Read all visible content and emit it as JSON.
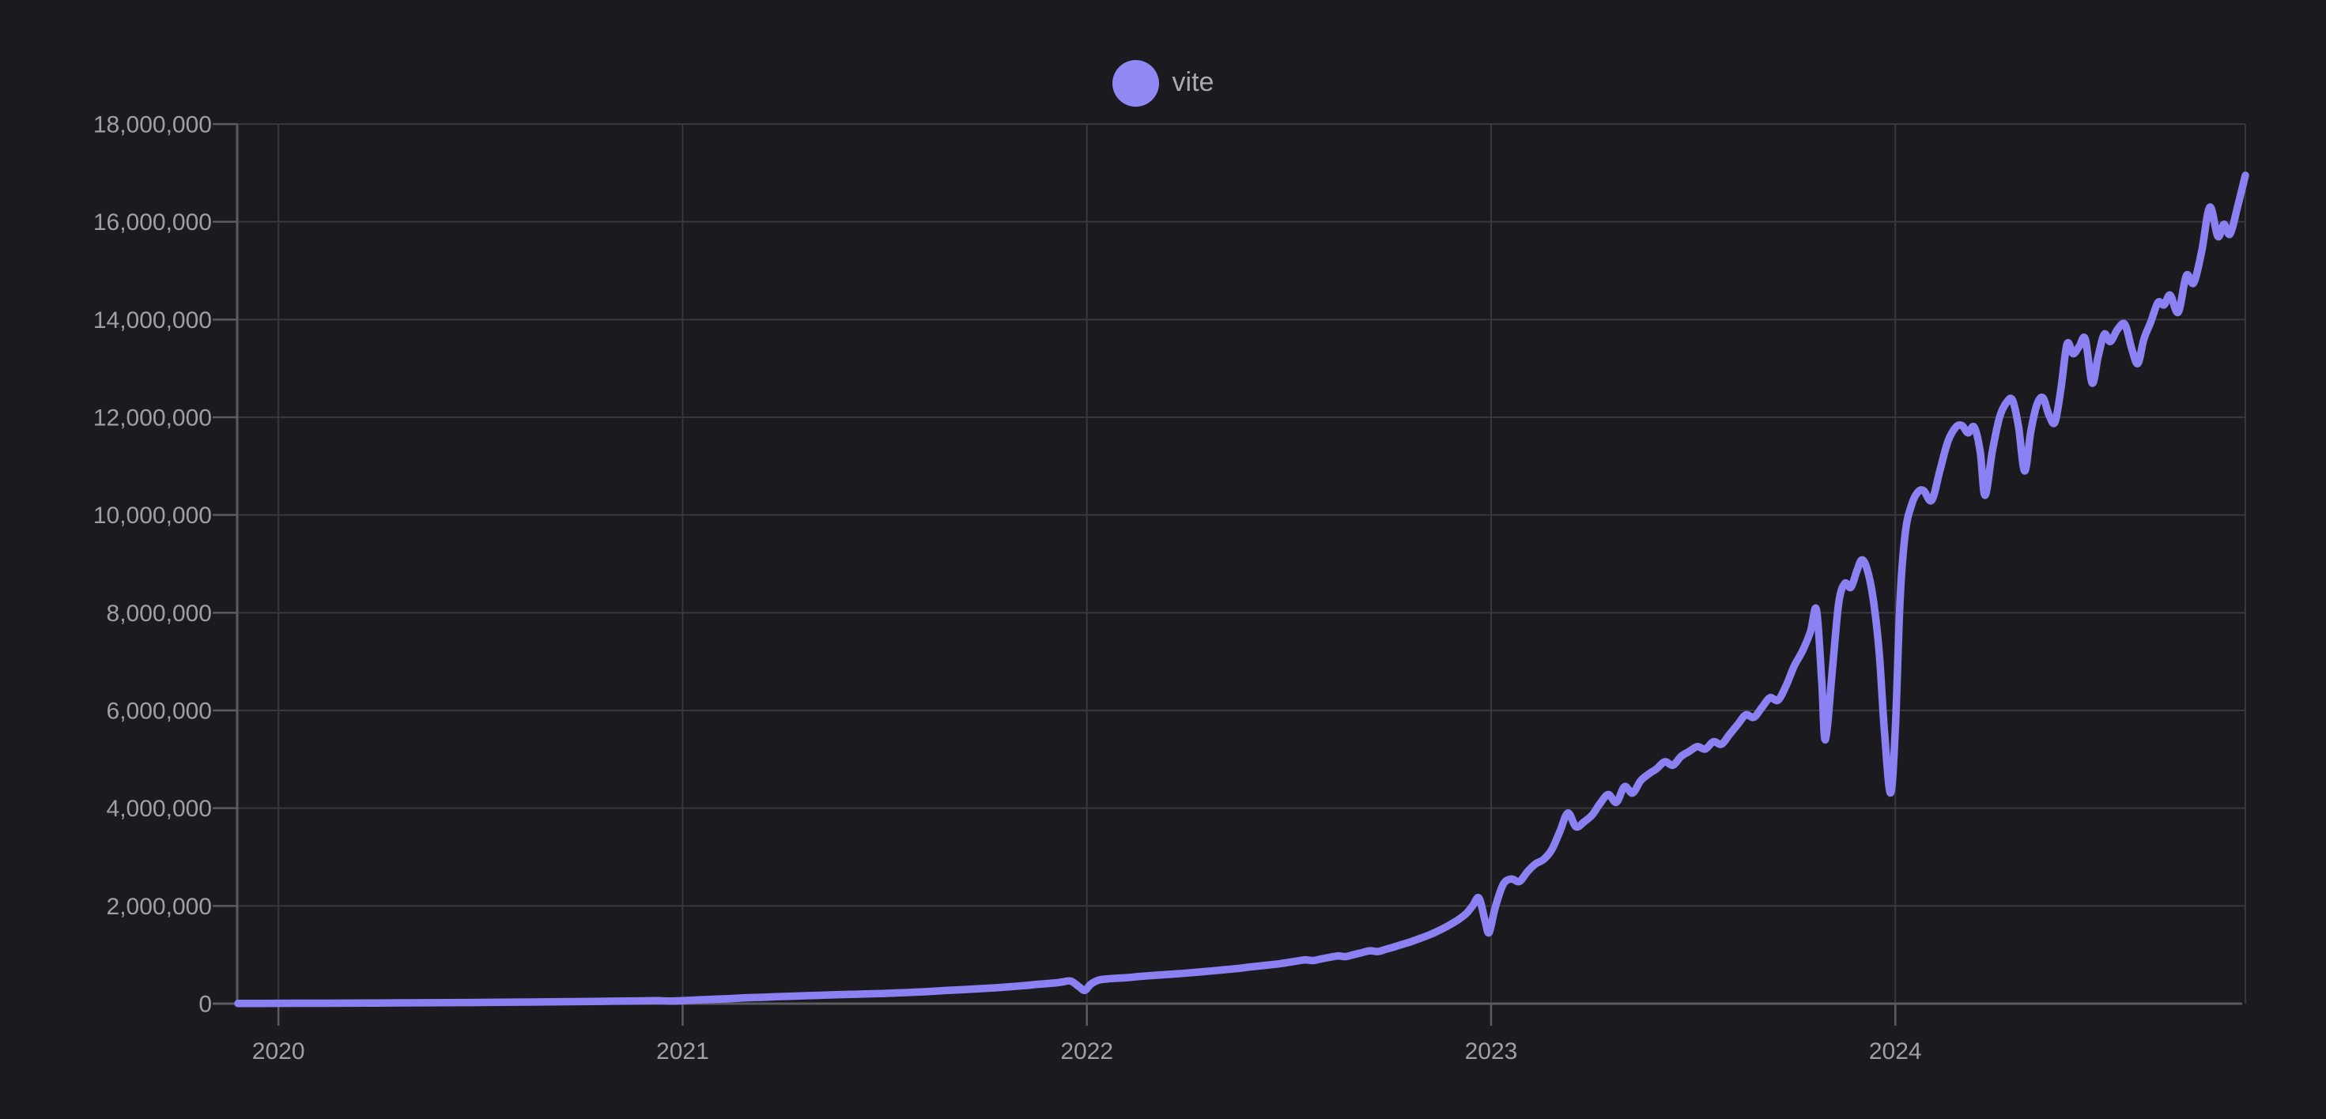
{
  "colors": {
    "background": "#1b1a1f",
    "gridline": "#39383e",
    "axis_line": "#5c5b61",
    "tick_label": "#a0a0a2",
    "legend_label": "#ababad",
    "series_line": "#8c81f2",
    "legend_marker": "#9089f4"
  },
  "legend": {
    "items": [
      {
        "label": "vite",
        "color": "#9089f4"
      }
    ]
  },
  "chart_data": {
    "type": "line",
    "title": "",
    "xlabel": "",
    "ylabel": "",
    "grid": true,
    "legend_position": "top-center",
    "x_axis": {
      "range": [
        2019.898,
        2024.866
      ],
      "ticks": [
        {
          "value": 2020,
          "label": "2020"
        },
        {
          "value": 2021,
          "label": "2021"
        },
        {
          "value": 2022,
          "label": "2022"
        },
        {
          "value": 2023,
          "label": "2023"
        },
        {
          "value": 2024,
          "label": "2024"
        }
      ]
    },
    "y_axis": {
      "range": [
        0,
        18000000
      ],
      "ticks": [
        {
          "value": 0,
          "label": "0"
        },
        {
          "value": 2000000,
          "label": "2,000,000"
        },
        {
          "value": 4000000,
          "label": "4,000,000"
        },
        {
          "value": 6000000,
          "label": "6,000,000"
        },
        {
          "value": 8000000,
          "label": "8,000,000"
        },
        {
          "value": 10000000,
          "label": "10,000,000"
        },
        {
          "value": 12000000,
          "label": "12,000,000"
        },
        {
          "value": 14000000,
          "label": "14,000,000"
        },
        {
          "value": 16000000,
          "label": "16,000,000"
        },
        {
          "value": 18000000,
          "label": "18,000,000"
        }
      ]
    },
    "series": [
      {
        "name": "vite",
        "color": "#8c81f2",
        "points": [
          [
            2019.9,
            4000
          ],
          [
            2019.95,
            5000
          ],
          [
            2020.0,
            6000
          ],
          [
            2020.08,
            8000
          ],
          [
            2020.17,
            10000
          ],
          [
            2020.25,
            13000
          ],
          [
            2020.33,
            16000
          ],
          [
            2020.42,
            20000
          ],
          [
            2020.5,
            25000
          ],
          [
            2020.58,
            30000
          ],
          [
            2020.67,
            36000
          ],
          [
            2020.75,
            42000
          ],
          [
            2020.83,
            50000
          ],
          [
            2020.9,
            57000
          ],
          [
            2020.94,
            60000
          ],
          [
            2020.97,
            52000
          ],
          [
            2021.0,
            62000
          ],
          [
            2021.04,
            76000
          ],
          [
            2021.08,
            90000
          ],
          [
            2021.12,
            103000
          ],
          [
            2021.15,
            116000
          ],
          [
            2021.19,
            128000
          ],
          [
            2021.23,
            140000
          ],
          [
            2021.27,
            152000
          ],
          [
            2021.31,
            163000
          ],
          [
            2021.35,
            173000
          ],
          [
            2021.38,
            182000
          ],
          [
            2021.42,
            191000
          ],
          [
            2021.46,
            200000
          ],
          [
            2021.5,
            209000
          ],
          [
            2021.54,
            221000
          ],
          [
            2021.58,
            236000
          ],
          [
            2021.62,
            253000
          ],
          [
            2021.65,
            268000
          ],
          [
            2021.69,
            285000
          ],
          [
            2021.73,
            302000
          ],
          [
            2021.77,
            322000
          ],
          [
            2021.81,
            346000
          ],
          [
            2021.85,
            372000
          ],
          [
            2021.88,
            396000
          ],
          [
            2021.92,
            422000
          ],
          [
            2021.94,
            445000
          ],
          [
            2021.96,
            462000
          ],
          [
            2021.98,
            350000
          ],
          [
            2021.995,
            272000
          ],
          [
            2022.01,
            400000
          ],
          [
            2022.03,
            482000
          ],
          [
            2022.06,
            512000
          ],
          [
            2022.1,
            532000
          ],
          [
            2022.13,
            556000
          ],
          [
            2022.17,
            581000
          ],
          [
            2022.21,
            603000
          ],
          [
            2022.25,
            627000
          ],
          [
            2022.29,
            655000
          ],
          [
            2022.33,
            686000
          ],
          [
            2022.37,
            716000
          ],
          [
            2022.4,
            747000
          ],
          [
            2022.44,
            782000
          ],
          [
            2022.48,
            820000
          ],
          [
            2022.5,
            846000
          ],
          [
            2022.52,
            872000
          ],
          [
            2022.54,
            896000
          ],
          [
            2022.56,
            882000
          ],
          [
            2022.58,
            916000
          ],
          [
            2022.6,
            946000
          ],
          [
            2022.62,
            976000
          ],
          [
            2022.64,
            962000
          ],
          [
            2022.66,
            1002000
          ],
          [
            2022.68,
            1042000
          ],
          [
            2022.7,
            1082000
          ],
          [
            2022.72,
            1066000
          ],
          [
            2022.74,
            1112000
          ],
          [
            2022.76,
            1160000
          ],
          [
            2022.78,
            1212000
          ],
          [
            2022.8,
            1262000
          ],
          [
            2022.82,
            1322000
          ],
          [
            2022.84,
            1382000
          ],
          [
            2022.86,
            1452000
          ],
          [
            2022.88,
            1532000
          ],
          [
            2022.9,
            1622000
          ],
          [
            2022.92,
            1724000
          ],
          [
            2022.94,
            1856000
          ],
          [
            2022.955,
            2010000
          ],
          [
            2022.97,
            2160000
          ],
          [
            2022.985,
            1700000
          ],
          [
            2022.995,
            1452000
          ],
          [
            2023.01,
            1960000
          ],
          [
            2023.03,
            2440000
          ],
          [
            2023.05,
            2550000
          ],
          [
            2023.07,
            2500000
          ],
          [
            2023.09,
            2700000
          ],
          [
            2023.11,
            2860000
          ],
          [
            2023.13,
            2950000
          ],
          [
            2023.15,
            3150000
          ],
          [
            2023.17,
            3520000
          ],
          [
            2023.19,
            3900000
          ],
          [
            2023.21,
            3620000
          ],
          [
            2023.23,
            3720000
          ],
          [
            2023.25,
            3860000
          ],
          [
            2023.27,
            4100000
          ],
          [
            2023.29,
            4280000
          ],
          [
            2023.31,
            4120000
          ],
          [
            2023.33,
            4440000
          ],
          [
            2023.35,
            4310000
          ],
          [
            2023.37,
            4560000
          ],
          [
            2023.39,
            4700000
          ],
          [
            2023.41,
            4810000
          ],
          [
            2023.43,
            4950000
          ],
          [
            2023.45,
            4880000
          ],
          [
            2023.47,
            5060000
          ],
          [
            2023.49,
            5160000
          ],
          [
            2023.51,
            5260000
          ],
          [
            2023.53,
            5210000
          ],
          [
            2023.55,
            5360000
          ],
          [
            2023.57,
            5310000
          ],
          [
            2023.59,
            5510000
          ],
          [
            2023.61,
            5710000
          ],
          [
            2023.63,
            5910000
          ],
          [
            2023.65,
            5860000
          ],
          [
            2023.67,
            6060000
          ],
          [
            2023.69,
            6260000
          ],
          [
            2023.71,
            6210000
          ],
          [
            2023.73,
            6510000
          ],
          [
            2023.75,
            6910000
          ],
          [
            2023.77,
            7210000
          ],
          [
            2023.79,
            7610000
          ],
          [
            2023.805,
            8060000
          ],
          [
            2023.818,
            6600000
          ],
          [
            2023.827,
            5400000
          ],
          [
            2023.845,
            6900000
          ],
          [
            2023.86,
            8200000
          ],
          [
            2023.875,
            8600000
          ],
          [
            2023.89,
            8520000
          ],
          [
            2023.905,
            8860000
          ],
          [
            2023.917,
            9080000
          ],
          [
            2023.93,
            8900000
          ],
          [
            2023.945,
            8300000
          ],
          [
            2023.96,
            7200000
          ],
          [
            2023.973,
            5600000
          ],
          [
            2023.988,
            4310000
          ],
          [
            2024.0,
            5600000
          ],
          [
            2024.012,
            8300000
          ],
          [
            2024.025,
            9650000
          ],
          [
            2024.04,
            10200000
          ],
          [
            2024.055,
            10460000
          ],
          [
            2024.07,
            10500000
          ],
          [
            2024.09,
            10300000
          ],
          [
            2024.11,
            10900000
          ],
          [
            2024.13,
            11500000
          ],
          [
            2024.15,
            11800000
          ],
          [
            2024.165,
            11830000
          ],
          [
            2024.18,
            11680000
          ],
          [
            2024.195,
            11800000
          ],
          [
            2024.21,
            11300000
          ],
          [
            2024.222,
            10400000
          ],
          [
            2024.24,
            11300000
          ],
          [
            2024.258,
            12000000
          ],
          [
            2024.275,
            12300000
          ],
          [
            2024.29,
            12350000
          ],
          [
            2024.305,
            11800000
          ],
          [
            2024.32,
            10900000
          ],
          [
            2024.335,
            11700000
          ],
          [
            2024.35,
            12250000
          ],
          [
            2024.365,
            12400000
          ],
          [
            2024.38,
            12050000
          ],
          [
            2024.395,
            11900000
          ],
          [
            2024.41,
            12600000
          ],
          [
            2024.425,
            13500000
          ],
          [
            2024.44,
            13300000
          ],
          [
            2024.455,
            13450000
          ],
          [
            2024.47,
            13600000
          ],
          [
            2024.487,
            12700000
          ],
          [
            2024.502,
            13250000
          ],
          [
            2024.517,
            13700000
          ],
          [
            2024.532,
            13550000
          ],
          [
            2024.55,
            13800000
          ],
          [
            2024.568,
            13900000
          ],
          [
            2024.585,
            13400000
          ],
          [
            2024.6,
            13100000
          ],
          [
            2024.615,
            13600000
          ],
          [
            2024.632,
            13950000
          ],
          [
            2024.65,
            14350000
          ],
          [
            2024.665,
            14300000
          ],
          [
            2024.68,
            14500000
          ],
          [
            2024.7,
            14150000
          ],
          [
            2024.72,
            14900000
          ],
          [
            2024.738,
            14750000
          ],
          [
            2024.758,
            15400000
          ],
          [
            2024.778,
            16300000
          ],
          [
            2024.798,
            15700000
          ],
          [
            2024.813,
            15950000
          ],
          [
            2024.828,
            15750000
          ],
          [
            2024.848,
            16350000
          ],
          [
            2024.866,
            16950000
          ]
        ]
      }
    ]
  }
}
